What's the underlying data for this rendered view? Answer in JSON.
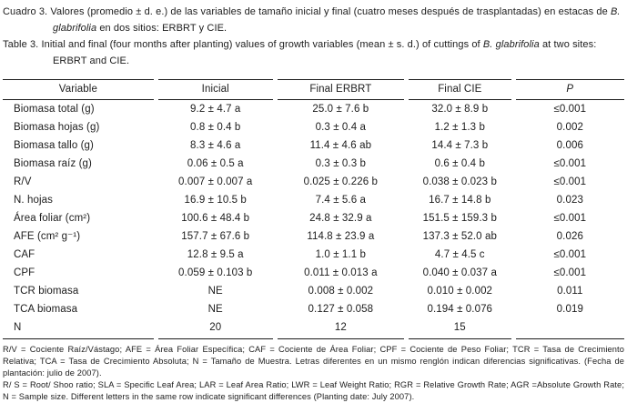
{
  "colors": {
    "text": "#1c1c1c",
    "rule": "#1c1c1c",
    "background": "#ffffff"
  },
  "caption": {
    "es": {
      "before": "Cuadro 3. Valores (promedio ± d. e.) de las variables de tamaño inicial y final (cuatro meses después de trasplantadas) en estacas de ",
      "species": "B. glabrifolia",
      "after": " en dos sitios: ERBRT y CIE."
    },
    "en": {
      "before": "Table 3. Initial and final (four months after planting) values of growth variables (mean ± s. d.) of cuttings of ",
      "species": "B. glabrifolia",
      "after": " at two sites: ERBRT and CIE."
    }
  },
  "table": {
    "headers": [
      "Variable",
      "Inicial",
      "Final ERBRT",
      "Final CIE",
      "P"
    ],
    "rows": [
      [
        "Biomasa total (g)",
        "9.2 ± 4.7 a",
        "25.0 ± 7.6 b",
        "32.0 ± 8.9 b",
        "≤0.001"
      ],
      [
        "Biomasa hojas (g)",
        "0.8 ± 0.4 b",
        "0.3 ± 0.4 a",
        "1.2 ± 1.3 b",
        "0.002"
      ],
      [
        "Biomasa tallo (g)",
        "8.3 ± 4.6 a",
        "11.4 ± 4.6 ab",
        "14.4 ± 7.3 b",
        "0.006"
      ],
      [
        "Biomasa raíz (g)",
        "0.06 ± 0.5 a",
        "0.3 ± 0.3 b",
        "0.6 ± 0.4 b",
        "≤0.001"
      ],
      [
        "R/V",
        "0.007 ± 0.007 a",
        "0.025 ± 0.226 b",
        "0.038 ± 0.023 b",
        "≤0.001"
      ],
      [
        "N. hojas",
        "16.9 ± 10.5 b",
        "7.4 ± 5.6 a",
        "16.7 ± 14.8 b",
        "0.023"
      ],
      [
        "Área foliar (cm²)",
        "100.6 ± 48.4 b",
        "24.8 ± 32.9 a",
        "151.5 ± 159.3 b",
        "≤0.001"
      ],
      [
        "AFE (cm² g⁻¹)",
        "157.7 ± 67.6 b",
        "114.8 ± 23.9 a",
        "137.3 ± 52.0 ab",
        "0.026"
      ],
      [
        "CAF",
        "12.8 ± 9.5 a",
        "1.0 ± 1.1 b",
        "4.7 ± 4.5 c",
        "≤0.001"
      ],
      [
        "CPF",
        "0.059 ± 0.103 b",
        "0.011 ± 0.013 a",
        "0.040 ± 0.037 a",
        "≤0.001"
      ],
      [
        "TCR biomasa",
        "NE",
        "0.008 ± 0.002",
        "0.010 ± 0.002",
        "0.011"
      ],
      [
        "TCA biomasa",
        "NE",
        "0.127 ± 0.058",
        "0.194 ± 0.076",
        "0.019"
      ],
      [
        "N",
        "20",
        "12",
        "15",
        ""
      ]
    ]
  },
  "footnotes": {
    "es": "R/V = Cociente Raíz/Vástago; AFE = Área Foliar Específica; CAF = Cociente de Área Foliar; CPF = Cociente de Peso Foliar; TCR = Tasa de Crecimiento Relativa; TCA = Tasa de Crecimiento Absoluta; N = Tamaño de Muestra. Letras diferentes en un mismo renglón indican diferencias significativas. (Fecha de plantación: julio de 2007).",
    "en": "R/ S = Root/ Shoo ratio; SLA = Specific Leaf Area; LAR = Leaf Area Ratio; LWR = Leaf Weight Ratio; RGR = Relative Growth Rate; AGR =Absolute Growth Rate; N = Sample size. Different letters in the same row indicate significant differences (Planting date: July 2007)."
  }
}
